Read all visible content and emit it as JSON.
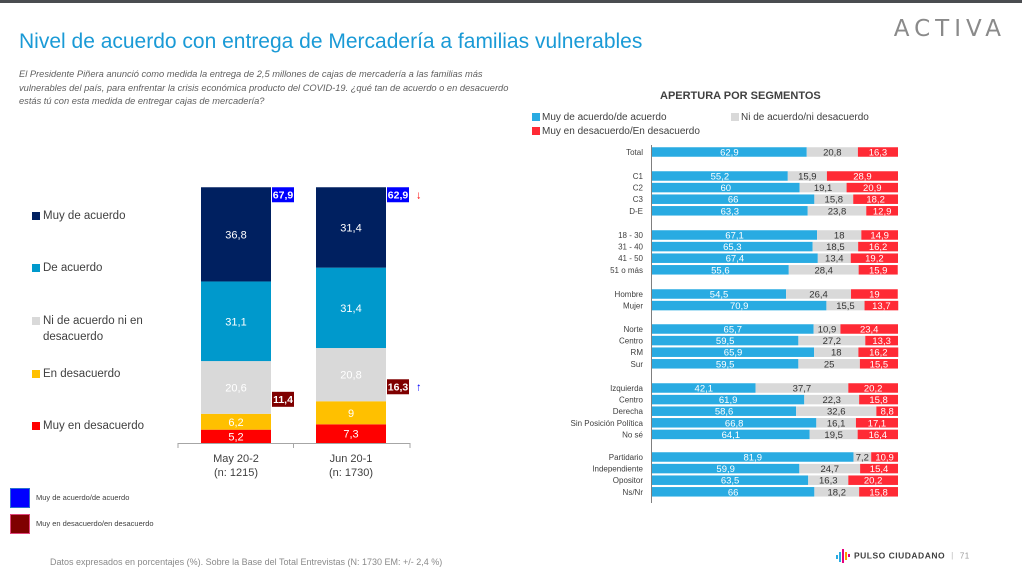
{
  "header": {
    "brand": "ACTIVA",
    "title": "Nivel de acuerdo con entrega de Mercadería a familias vulnerables",
    "question": "El Presidente Piñera anunció como medida la entrega de 2,5 millones de cajas de mercadería a las familias más vulnerables del país, para enfrentar la crisis económica producto del COVID-19. ¿qué tan de acuerdo o en desacuerdo estás tú con esta medida de entregar cajas de mercadería?"
  },
  "colors": {
    "muy_de_acuerdo": "#002060",
    "de_acuerdo": "#0099cc",
    "ni_ni": "#d9d9d9",
    "en_desacuerdo": "#ffc000",
    "muy_en_desacuerdo": "#ff0000",
    "total_acuerdo_box": "#0000ff",
    "total_desacuerdo_box": "#7f0000",
    "seg_acuerdo": "#29abe2",
    "seg_ni": "#d9d9d9",
    "seg_desacuerdo": "#ff2a35",
    "title": "#1a9ad6"
  },
  "chart_data": [
    {
      "type": "bar",
      "stacked": true,
      "title": "Nivel de acuerdo con entrega de Mercadería a familias vulnerables",
      "categories": [
        "May 20-2\n(n: 1215)",
        "Jun 20-1\n(n: 1730)"
      ],
      "category_lines": [
        [
          "May 20-2",
          "(n: 1215)"
        ],
        [
          "Jun 20-1",
          "(n: 1730)"
        ]
      ],
      "series": [
        {
          "name": "Muy en desacuerdo",
          "key": "muy_en_desacuerdo",
          "values": [
            5.2,
            7.3
          ],
          "labels": [
            "5,2",
            "7,3"
          ]
        },
        {
          "name": "En desacuerdo",
          "key": "en_desacuerdo",
          "values": [
            6.2,
            9
          ],
          "labels": [
            "6,2",
            "9"
          ]
        },
        {
          "name": "Ni de acuerdo ni en desacuerdo",
          "key": "ni_ni",
          "values": [
            20.6,
            20.8
          ],
          "labels": [
            "20,6",
            "20,8"
          ]
        },
        {
          "name": "De acuerdo",
          "key": "de_acuerdo",
          "values": [
            31.1,
            31.4
          ],
          "labels": [
            "31,1",
            "31,4"
          ]
        },
        {
          "name": "Muy de acuerdo",
          "key": "muy_de_acuerdo",
          "values": [
            36.8,
            31.4
          ],
          "labels": [
            "36,8",
            "31,4"
          ]
        }
      ],
      "legend": [
        {
          "name": "Muy de acuerdo",
          "key": "muy_de_acuerdo"
        },
        {
          "name": "De acuerdo",
          "key": "de_acuerdo"
        },
        {
          "name": "Ni de acuerdo ni en desacuerdo",
          "key": "ni_ni",
          "lines": [
            "Ni de acuerdo ni en",
            "desacuerdo"
          ]
        },
        {
          "name": "En desacuerdo",
          "key": "en_desacuerdo"
        },
        {
          "name": "Muy en desacuerdo",
          "key": "muy_en_desacuerdo"
        }
      ],
      "totals_acuerdo": {
        "values": [
          67.9,
          62.9
        ],
        "labels": [
          "67,9",
          "62,9"
        ],
        "change": [
          "",
          "down"
        ]
      },
      "totals_desacuerdo": {
        "values": [
          11.4,
          16.3
        ],
        "labels": [
          "11,4",
          "16,3"
        ],
        "change": [
          "",
          "up"
        ]
      },
      "ylim": [
        0,
        100
      ],
      "legend_placement": "left",
      "grid": false
    },
    {
      "type": "bar",
      "orientation": "horizontal",
      "stacked": true,
      "title": "APERTURA POR SEGMENTOS",
      "legend": [
        {
          "name": "Muy de acuerdo/de acuerdo",
          "key": "seg_acuerdo"
        },
        {
          "name": "Ni de acuerdo/ni desacuerdo",
          "key": "seg_ni"
        },
        {
          "name": "Muy en desacuerdo/En desacuerdo",
          "key": "seg_desacuerdo"
        }
      ],
      "legend_placement": "top",
      "xlim": [
        0,
        100
      ],
      "groups": [
        {
          "rows": [
            {
              "label": "Total",
              "values": [
                62.9,
                20.8,
                16.3
              ],
              "labels": [
                "62,9",
                "20,8",
                "16,3"
              ]
            }
          ]
        },
        {
          "rows": [
            {
              "label": "C1",
              "values": [
                55.2,
                15.9,
                28.9
              ],
              "labels": [
                "55,2",
                "15,9",
                "28,9"
              ]
            },
            {
              "label": "C2",
              "values": [
                60,
                19.1,
                20.9
              ],
              "labels": [
                "60",
                "19,1",
                "20,9"
              ]
            },
            {
              "label": "C3",
              "values": [
                66,
                15.8,
                18.2
              ],
              "labels": [
                "66",
                "15,8",
                "18,2"
              ]
            },
            {
              "label": "D-E",
              "values": [
                63.3,
                23.8,
                12.9
              ],
              "labels": [
                "63,3",
                "23,8",
                "12,9"
              ]
            }
          ]
        },
        {
          "rows": [
            {
              "label": "18 - 30",
              "values": [
                67.1,
                18,
                14.9
              ],
              "labels": [
                "67,1",
                "18",
                "14,9"
              ]
            },
            {
              "label": "31 - 40",
              "values": [
                65.3,
                18.5,
                16.2
              ],
              "labels": [
                "65,3",
                "18,5",
                "16,2"
              ]
            },
            {
              "label": "41 - 50",
              "values": [
                67.4,
                13.4,
                19.2
              ],
              "labels": [
                "67,4",
                "13,4",
                "19,2"
              ]
            },
            {
              "label": "51 o más",
              "values": [
                55.6,
                28.4,
                15.9
              ],
              "labels": [
                "55,6",
                "28,4",
                "15,9"
              ]
            }
          ]
        },
        {
          "rows": [
            {
              "label": "Hombre",
              "values": [
                54.5,
                26.4,
                19
              ],
              "labels": [
                "54,5",
                "26,4",
                "19"
              ]
            },
            {
              "label": "Mujer",
              "values": [
                70.9,
                15.5,
                13.7
              ],
              "labels": [
                "70,9",
                "15,5",
                "13,7"
              ]
            }
          ]
        },
        {
          "rows": [
            {
              "label": "Norte",
              "values": [
                65.7,
                10.9,
                23.4
              ],
              "labels": [
                "65,7",
                "10,9",
                "23,4"
              ]
            },
            {
              "label": "Centro",
              "values": [
                59.5,
                27.2,
                13.3
              ],
              "labels": [
                "59,5",
                "27,2",
                "13,3"
              ]
            },
            {
              "label": "RM",
              "values": [
                65.9,
                18,
                16.2
              ],
              "labels": [
                "65,9",
                "18",
                "16,2"
              ]
            },
            {
              "label": "Sur",
              "values": [
                59.5,
                25,
                15.5
              ],
              "labels": [
                "59,5",
                "25",
                "15,5"
              ]
            }
          ]
        },
        {
          "rows": [
            {
              "label": "Izquierda",
              "values": [
                42.1,
                37.7,
                20.2
              ],
              "labels": [
                "42,1",
                "37,7",
                "20,2"
              ]
            },
            {
              "label": "Centro",
              "values": [
                61.9,
                22.3,
                15.8
              ],
              "labels": [
                "61,9",
                "22,3",
                "15,8"
              ]
            },
            {
              "label": "Derecha",
              "values": [
                58.6,
                32.6,
                8.8
              ],
              "labels": [
                "58,6",
                "32,6",
                "8,8"
              ]
            },
            {
              "label": "Sin Posición Política",
              "values": [
                66.8,
                16.1,
                17.1
              ],
              "labels": [
                "66,8",
                "16,1",
                "17,1"
              ]
            },
            {
              "label": "No sé",
              "values": [
                64.1,
                19.5,
                16.4
              ],
              "labels": [
                "64,1",
                "19,5",
                "16,4"
              ]
            }
          ]
        },
        {
          "rows": [
            {
              "label": "Partidario",
              "values": [
                81.9,
                7.2,
                10.9
              ],
              "labels": [
                "81,9",
                "7,2",
                "10,9"
              ]
            },
            {
              "label": "Independiente",
              "values": [
                59.9,
                24.7,
                15.4
              ],
              "labels": [
                "59,9",
                "24,7",
                "15,4"
              ]
            },
            {
              "label": "Opositor",
              "values": [
                63.5,
                16.3,
                20.2
              ],
              "labels": [
                "63,5",
                "16,3",
                "20,2"
              ]
            },
            {
              "label": "Ns/Nr",
              "values": [
                66,
                18.2,
                15.8
              ],
              "labels": [
                "66",
                "18,2",
                "15,8"
              ]
            }
          ]
        }
      ]
    }
  ],
  "bottom_legend": [
    {
      "label": "Muy de acuerdo/de acuerdo",
      "key": "total_acuerdo_box"
    },
    {
      "label": "Muy en desacuerdo/en desacuerdo",
      "key": "total_desacuerdo_box"
    }
  ],
  "footer": {
    "note": "Datos expresados en porcentajes (%). Sobre la Base del Total Entrevistas (N: 1730  EM: +/- 2,4 %)",
    "brand": "PULSO CIUDADANO",
    "separator": "|",
    "page": "71"
  }
}
